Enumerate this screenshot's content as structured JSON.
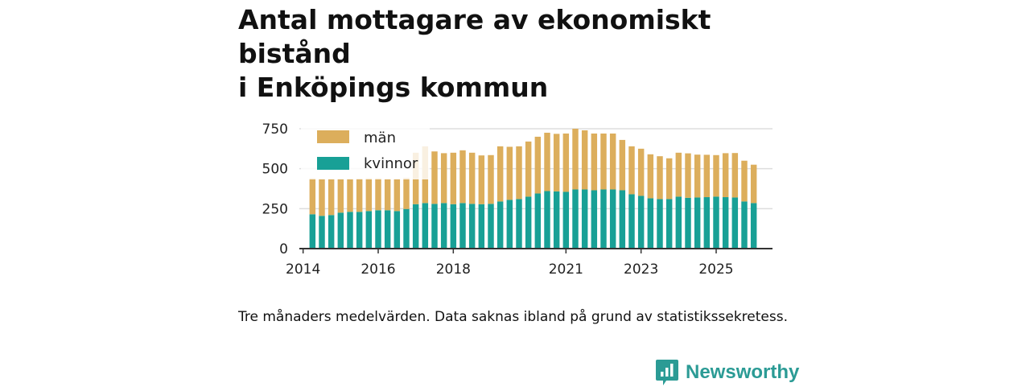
{
  "title": {
    "line1": "Antal mottagare av ekonomiskt bistånd",
    "line2": "i Enköpings kommun"
  },
  "note": "Tre månaders medelvärden. Data saknas ibland på grund av statistikssekretess.",
  "brand": {
    "name": "Newsworthy",
    "icon": "newsworthy-logo-icon"
  },
  "colors": {
    "man": "#dcae5c",
    "kvinnor": "#18a096",
    "grid": "#dddddd",
    "axis": "#333333"
  },
  "chart_data": {
    "type": "bar",
    "stacked": true,
    "title": "Antal mottagare av ekonomiskt bistånd i Enköpings kommun",
    "xlabel": "",
    "ylabel": "",
    "ylim": [
      0,
      750
    ],
    "yticks": [
      0,
      250,
      500,
      750
    ],
    "xlim": [
      2013.9,
      2026.5
    ],
    "xticks": [
      2014,
      2016,
      2018,
      2021,
      2023,
      2025
    ],
    "legend": {
      "position": "top-left",
      "entries": [
        "män",
        "kvinnor"
      ]
    },
    "x": [
      2014.25,
      2014.5,
      2014.75,
      2015.0,
      2015.25,
      2015.5,
      2015.75,
      2016.0,
      2016.25,
      2016.5,
      2016.75,
      2017.0,
      2017.25,
      2017.5,
      2017.75,
      2018.0,
      2018.25,
      2018.5,
      2018.75,
      2019.0,
      2019.25,
      2019.5,
      2019.75,
      2020.0,
      2020.25,
      2020.5,
      2020.75,
      2021.0,
      2021.25,
      2021.5,
      2021.75,
      2022.0,
      2022.25,
      2022.5,
      2022.75,
      2023.0,
      2023.25,
      2023.5,
      2023.75,
      2024.0,
      2024.25,
      2024.5,
      2024.75,
      2025.0,
      2025.25,
      2025.5,
      2025.75,
      2026.0
    ],
    "series": [
      {
        "name": "kvinnor",
        "values": [
          215,
          205,
          210,
          225,
          230,
          230,
          235,
          240,
          240,
          235,
          248,
          278,
          285,
          280,
          285,
          278,
          285,
          280,
          278,
          280,
          295,
          305,
          310,
          325,
          345,
          360,
          358,
          355,
          370,
          370,
          365,
          370,
          370,
          365,
          340,
          330,
          315,
          310,
          310,
          325,
          318,
          320,
          322,
          325,
          322,
          320,
          295,
          285
        ]
      },
      {
        "name": "män",
        "values": [
          225,
          230,
          225,
          210,
          205,
          208,
          205,
          200,
          195,
          200,
          195,
          322,
          355,
          328,
          312,
          322,
          330,
          320,
          305,
          305,
          345,
          332,
          330,
          345,
          355,
          365,
          360,
          365,
          380,
          370,
          355,
          350,
          350,
          315,
          300,
          295,
          275,
          268,
          255,
          275,
          278,
          268,
          265,
          260,
          275,
          278,
          255,
          240
        ]
      }
    ]
  }
}
